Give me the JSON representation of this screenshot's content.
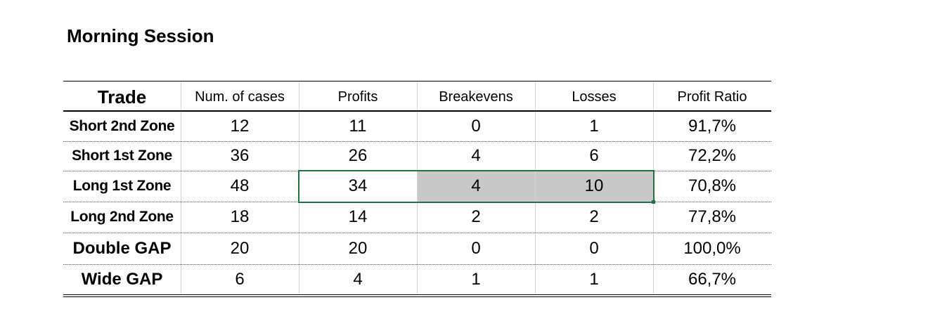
{
  "header": {
    "title": "Morning Session"
  },
  "table": {
    "columns": [
      "Trade",
      "Num. of cases",
      "Profits",
      "Breakevens",
      "Losses",
      "Profit Ratio"
    ],
    "rows": [
      [
        "Short 2nd Zone",
        "12",
        "11",
        "0",
        "1",
        "91,7%"
      ],
      [
        "Short 1st Zone",
        "36",
        "26",
        "4",
        "6",
        "72,2%"
      ],
      [
        "Long 1st Zone",
        "48",
        "34",
        "4",
        "10",
        "70,8%"
      ],
      [
        "Long 2nd Zone",
        "18",
        "14",
        "2",
        "2",
        "77,8%"
      ],
      [
        "Double GAP",
        "20",
        "20",
        "0",
        "0",
        "100,0%"
      ],
      [
        "Wide GAP",
        "6",
        "4",
        "1",
        "1",
        "66,7%"
      ]
    ]
  }
}
